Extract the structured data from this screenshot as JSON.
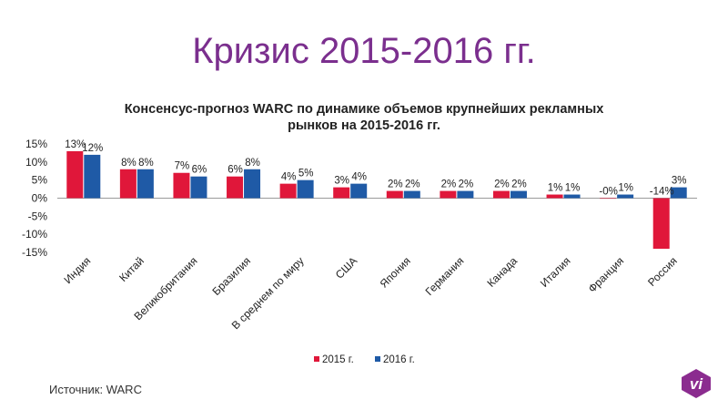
{
  "slide": {
    "title": "Кризис 2015-2016 гг.",
    "source": "Источник: WARC",
    "logo_text": "vi"
  },
  "colors": {
    "title": "#7b2f8e",
    "series_2015": "#e0173a",
    "series_2016": "#1f5aa6",
    "logo": "#8b2c8f"
  },
  "chart_data": {
    "type": "bar",
    "title_lines": [
      "Консенсус-прогноз WARC по динамике объемов крупнейших рекламных",
      "рынков на 2015-2016 гг."
    ],
    "categories": [
      "Индия",
      "Китай",
      "Великобритания",
      "Бразилия",
      "В среднем по миру",
      "США",
      "Япония",
      "Германия",
      "Канада",
      "Италия",
      "Франция",
      "Россия"
    ],
    "series": [
      {
        "name": "2015 г.",
        "values": [
          13,
          8,
          7,
          6,
          4,
          3,
          2,
          2,
          2,
          1,
          0,
          -14
        ],
        "labels": [
          "13%",
          "8%",
          "7%",
          "6%",
          "4%",
          "3%",
          "2%",
          "2%",
          "2%",
          "1%",
          "-0%",
          "-14%"
        ]
      },
      {
        "name": "2016 г.",
        "values": [
          12,
          8,
          6,
          8,
          5,
          4,
          2,
          2,
          2,
          1,
          1,
          3
        ],
        "labels": [
          "12%",
          "8%",
          "6%",
          "8%",
          "5%",
          "4%",
          "2%",
          "2%",
          "2%",
          "1%",
          "1%",
          "3%"
        ]
      }
    ],
    "ylim": [
      -15,
      15
    ],
    "yticks": [
      15,
      10,
      5,
      0,
      -5,
      -10,
      -15
    ],
    "ytick_labels": [
      "15%",
      "10%",
      "5%",
      "0%",
      "-5%",
      "-10%",
      "-15%"
    ],
    "legend": "bottom",
    "grid": false
  }
}
